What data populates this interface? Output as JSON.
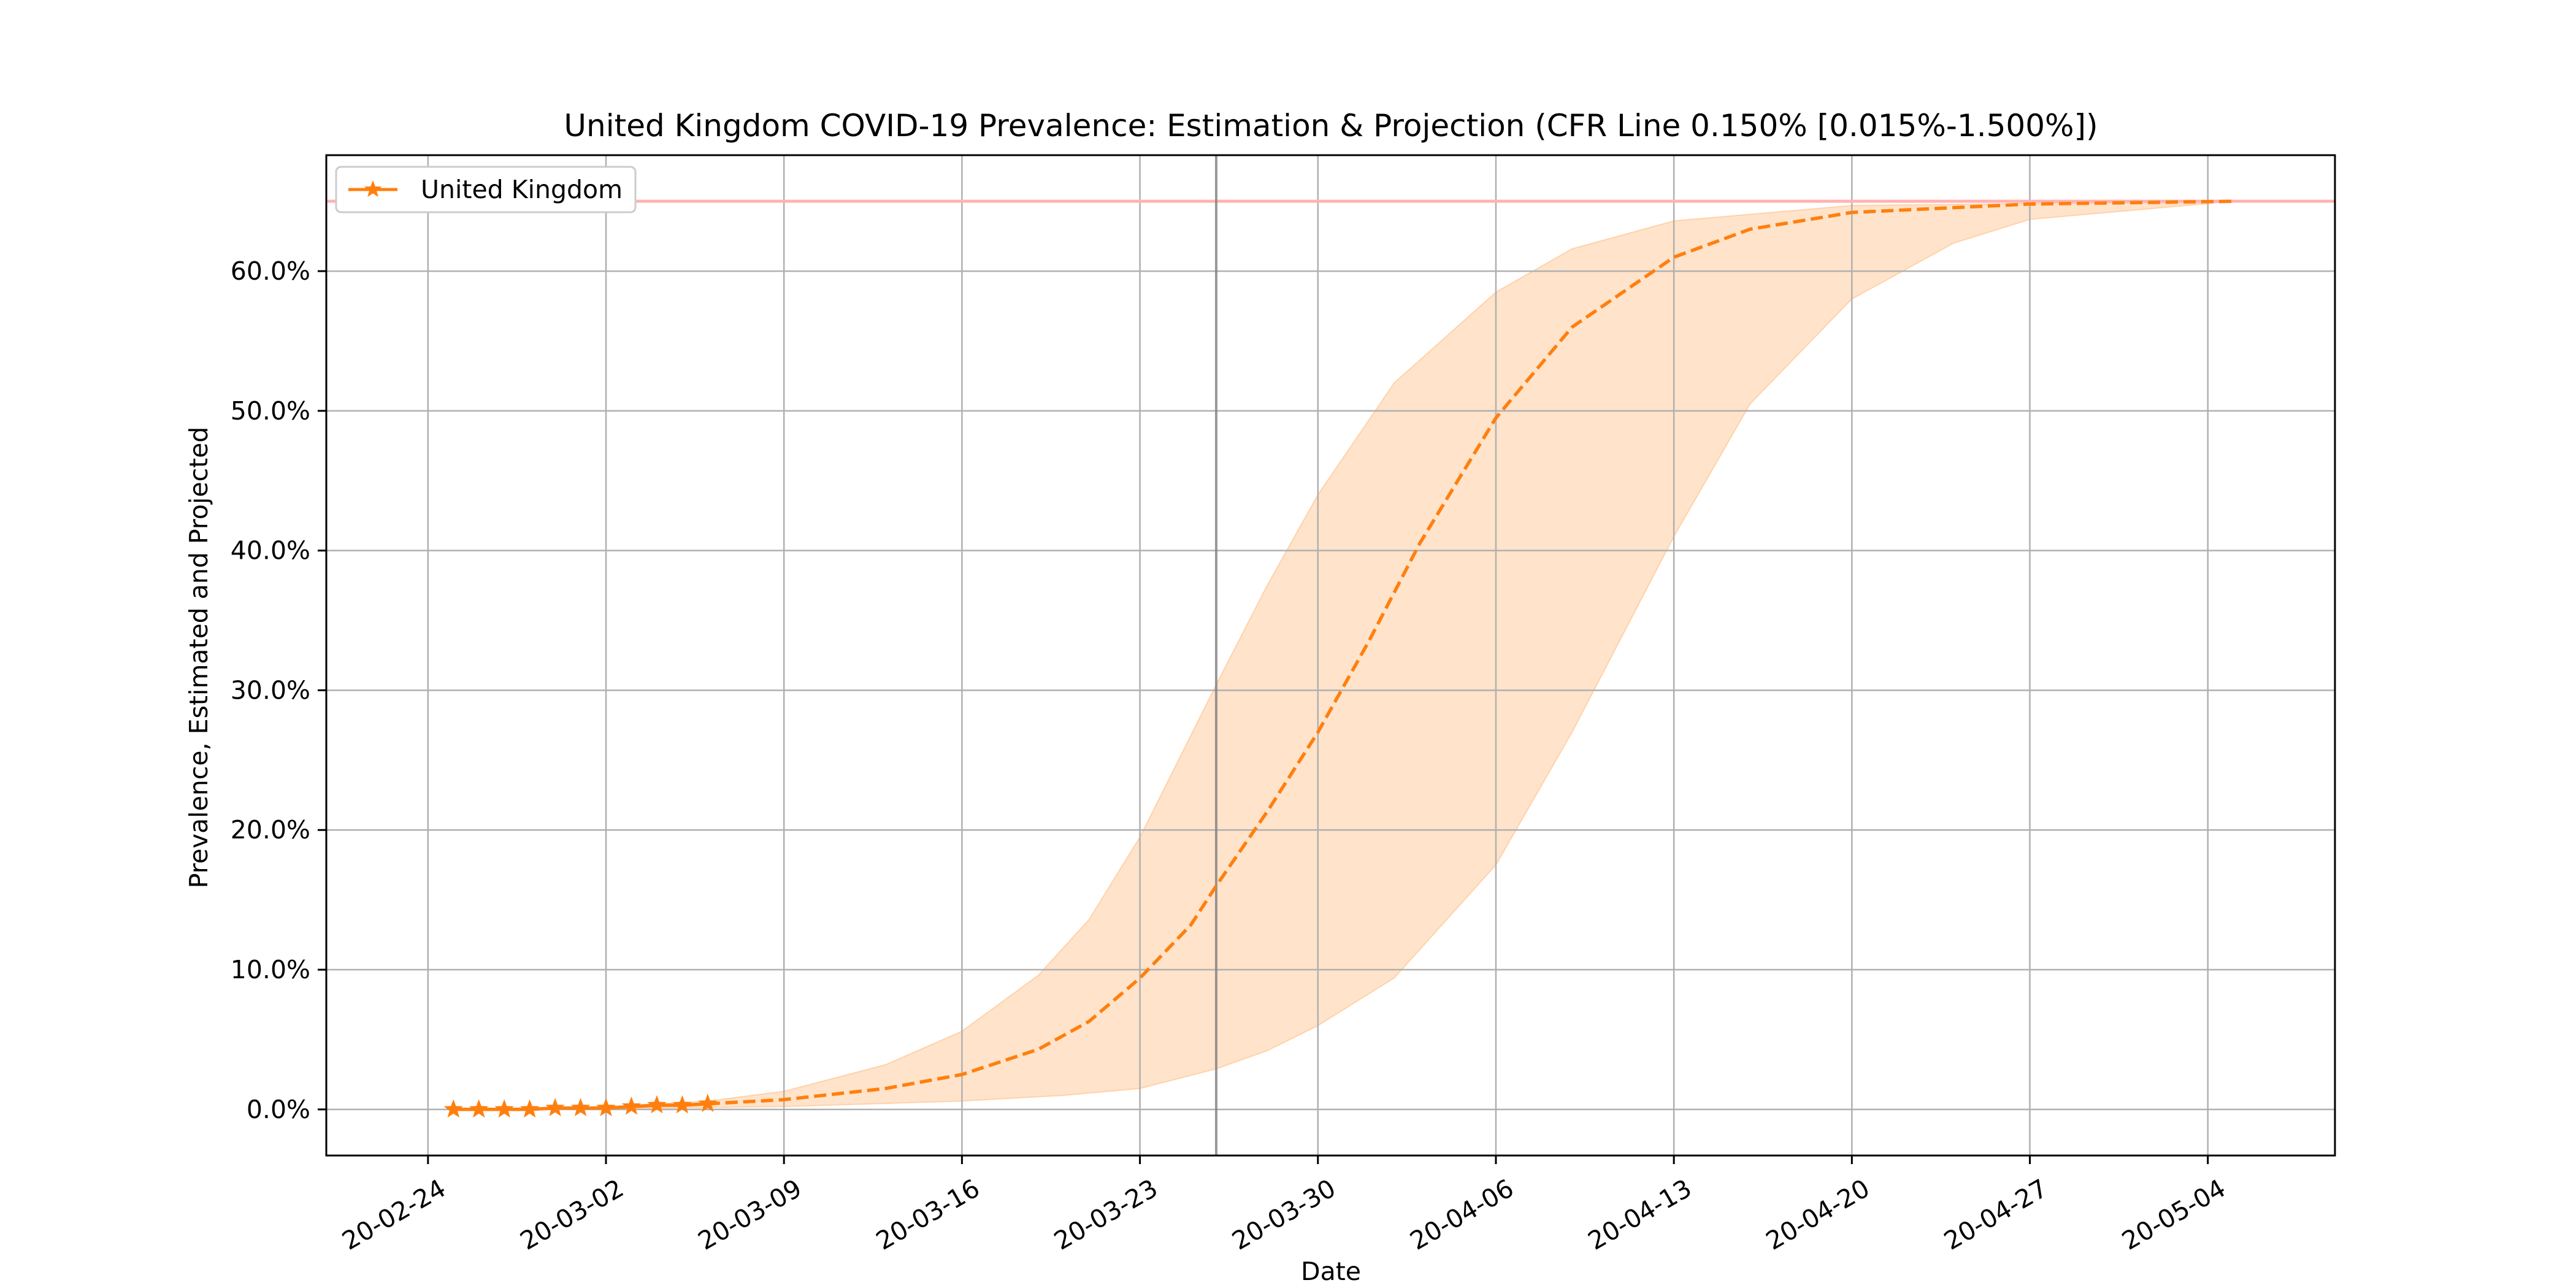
{
  "chart_data": {
    "type": "line",
    "title": "United Kingdom COVID-19 Prevalence: Estimation & Projection (CFR Line 0.150% [0.015%-1.500%])",
    "xlabel": "Date",
    "ylabel": "Prevalence, Estimated and Projected",
    "x_range": [
      "2020-02-20",
      "2020-05-09"
    ],
    "ylim": [
      -3.3,
      68.3
    ],
    "grid": true,
    "legend_position": "top-left",
    "x_ticks": [
      {
        "date": "2020-02-24",
        "label": "20-02-24"
      },
      {
        "date": "2020-03-02",
        "label": "20-03-02"
      },
      {
        "date": "2020-03-09",
        "label": "20-03-09"
      },
      {
        "date": "2020-03-16",
        "label": "20-03-16"
      },
      {
        "date": "2020-03-23",
        "label": "20-03-23"
      },
      {
        "date": "2020-03-30",
        "label": "20-03-30"
      },
      {
        "date": "2020-04-06",
        "label": "20-04-06"
      },
      {
        "date": "2020-04-13",
        "label": "20-04-13"
      },
      {
        "date": "2020-04-20",
        "label": "20-04-20"
      },
      {
        "date": "2020-04-27",
        "label": "20-04-27"
      },
      {
        "date": "2020-05-04",
        "label": "20-05-04"
      }
    ],
    "y_ticks": [
      {
        "value": 0,
        "label": "0.0%"
      },
      {
        "value": 10,
        "label": "10.0%"
      },
      {
        "value": 20,
        "label": "20.0%"
      },
      {
        "value": 30,
        "label": "30.0%"
      },
      {
        "value": 40,
        "label": "40.0%"
      },
      {
        "value": 50,
        "label": "50.0%"
      },
      {
        "value": 60,
        "label": "60.0%"
      }
    ],
    "reference_line": {
      "value": 65,
      "color": "#ffb3b3"
    },
    "today_line": {
      "date": "2020-03-26",
      "color": "#808080"
    },
    "series": [
      {
        "name": "United Kingdom",
        "color": "#ff7f0e",
        "estimated": [
          {
            "date": "2020-02-25",
            "y": 0.0
          },
          {
            "date": "2020-02-26",
            "y": 0.0
          },
          {
            "date": "2020-02-27",
            "y": 0.0
          },
          {
            "date": "2020-02-28",
            "y": 0.0
          },
          {
            "date": "2020-02-29",
            "y": 0.1
          },
          {
            "date": "2020-03-01",
            "y": 0.1
          },
          {
            "date": "2020-03-02",
            "y": 0.1
          },
          {
            "date": "2020-03-03",
            "y": 0.2
          },
          {
            "date": "2020-03-04",
            "y": 0.3
          },
          {
            "date": "2020-03-05",
            "y": 0.3
          },
          {
            "date": "2020-03-06",
            "y": 0.4
          }
        ],
        "projected": [
          {
            "date": "2020-03-06",
            "y": 0.4
          },
          {
            "date": "2020-03-09",
            "y": 0.7
          },
          {
            "date": "2020-03-13",
            "y": 1.5
          },
          {
            "date": "2020-03-16",
            "y": 2.5
          },
          {
            "date": "2020-03-19",
            "y": 4.3
          },
          {
            "date": "2020-03-21",
            "y": 6.3
          },
          {
            "date": "2020-03-23",
            "y": 9.4
          },
          {
            "date": "2020-03-25",
            "y": 13.2
          },
          {
            "date": "2020-03-26",
            "y": 16.0
          },
          {
            "date": "2020-03-28",
            "y": 21.3
          },
          {
            "date": "2020-03-30",
            "y": 27.0
          },
          {
            "date": "2020-04-01",
            "y": 33.5
          },
          {
            "date": "2020-04-03",
            "y": 40.5
          },
          {
            "date": "2020-04-06",
            "y": 49.5
          },
          {
            "date": "2020-04-09",
            "y": 56.0
          },
          {
            "date": "2020-04-13",
            "y": 61.0
          },
          {
            "date": "2020-04-16",
            "y": 63.0
          },
          {
            "date": "2020-04-20",
            "y": 64.2
          },
          {
            "date": "2020-04-27",
            "y": 64.8
          },
          {
            "date": "2020-05-05",
            "y": 65.0
          }
        ],
        "band_upper": [
          {
            "date": "2020-02-25",
            "y": 0.0
          },
          {
            "date": "2020-03-02",
            "y": 0.2
          },
          {
            "date": "2020-03-06",
            "y": 0.6
          },
          {
            "date": "2020-03-09",
            "y": 1.3
          },
          {
            "date": "2020-03-13",
            "y": 3.2
          },
          {
            "date": "2020-03-16",
            "y": 5.6
          },
          {
            "date": "2020-03-19",
            "y": 9.6
          },
          {
            "date": "2020-03-21",
            "y": 13.6
          },
          {
            "date": "2020-03-23",
            "y": 19.5
          },
          {
            "date": "2020-03-26",
            "y": 30.4
          },
          {
            "date": "2020-03-28",
            "y": 37.5
          },
          {
            "date": "2020-03-30",
            "y": 44.0
          },
          {
            "date": "2020-04-02",
            "y": 52.0
          },
          {
            "date": "2020-04-06",
            "y": 58.5
          },
          {
            "date": "2020-04-09",
            "y": 61.6
          },
          {
            "date": "2020-04-13",
            "y": 63.6
          },
          {
            "date": "2020-04-20",
            "y": 64.7
          },
          {
            "date": "2020-05-05",
            "y": 65.0
          }
        ],
        "band_lower": [
          {
            "date": "2020-02-25",
            "y": 0.0
          },
          {
            "date": "2020-03-02",
            "y": 0.05
          },
          {
            "date": "2020-03-09",
            "y": 0.2
          },
          {
            "date": "2020-03-16",
            "y": 0.6
          },
          {
            "date": "2020-03-20",
            "y": 1.0
          },
          {
            "date": "2020-03-23",
            "y": 1.5
          },
          {
            "date": "2020-03-26",
            "y": 2.9
          },
          {
            "date": "2020-03-28",
            "y": 4.2
          },
          {
            "date": "2020-03-30",
            "y": 6.0
          },
          {
            "date": "2020-04-02",
            "y": 9.4
          },
          {
            "date": "2020-04-06",
            "y": 17.5
          },
          {
            "date": "2020-04-09",
            "y": 27.0
          },
          {
            "date": "2020-04-13",
            "y": 41.0
          },
          {
            "date": "2020-04-16",
            "y": 50.5
          },
          {
            "date": "2020-04-20",
            "y": 58.0
          },
          {
            "date": "2020-04-24",
            "y": 62.0
          },
          {
            "date": "2020-04-27",
            "y": 63.7
          },
          {
            "date": "2020-05-05",
            "y": 65.0
          }
        ]
      }
    ]
  }
}
